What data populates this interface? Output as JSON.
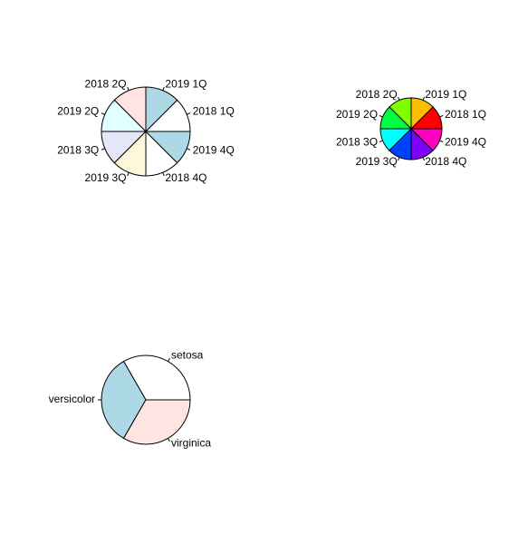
{
  "chart_data": [
    {
      "type": "pie",
      "categories": [
        "2018 1Q",
        "2019 1Q",
        "2018 2Q",
        "2019 2Q",
        "2018 3Q",
        "2019 3Q",
        "2018 4Q",
        "2019 4Q"
      ],
      "values": [
        1,
        1,
        1,
        1,
        1,
        1,
        1,
        1
      ],
      "colors": [
        "#FFFFFF",
        "#ADD8E6",
        "#FFE4E1",
        "#E0FFFF",
        "#E6E6FA",
        "#FFF8DC",
        "#FFFFFF",
        "#ADD8E6"
      ],
      "title": "",
      "legend": "none",
      "labels_outside": true
    },
    {
      "type": "pie",
      "categories": [
        "2018 1Q",
        "2019 1Q",
        "2018 2Q",
        "2019 2Q",
        "2018 3Q",
        "2019 3Q",
        "2018 4Q",
        "2019 4Q"
      ],
      "values": [
        1,
        1,
        1,
        1,
        1,
        1,
        1,
        1
      ],
      "colors": [
        "#FF0000",
        "#FFBF00",
        "#80FF00",
        "#00FF40",
        "#00FFFF",
        "#0040FF",
        "#7F00FF",
        "#FF00BF"
      ],
      "title": "",
      "legend": "none",
      "labels_outside": true
    },
    {
      "type": "pie",
      "categories": [
        "setosa",
        "versicolor",
        "virginica"
      ],
      "values": [
        50,
        50,
        50
      ],
      "colors": [
        "#FFFFFF",
        "#ADD8E6",
        "#FFE4E1"
      ],
      "title": "",
      "legend": "none",
      "labels_outside": true
    }
  ]
}
